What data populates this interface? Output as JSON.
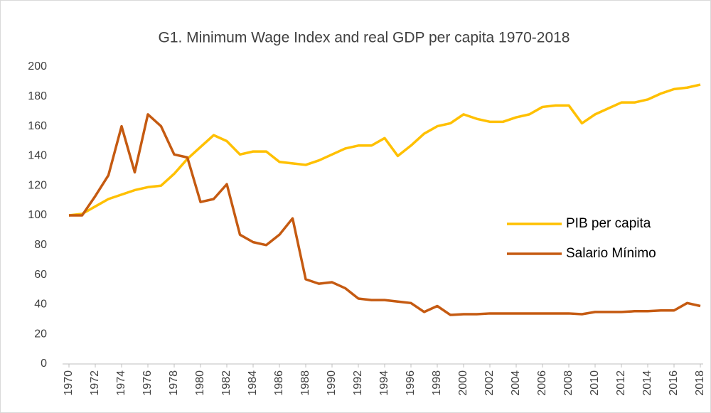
{
  "chart_data": {
    "type": "line",
    "title": "G1. Minimum Wage  Index and real GDP per capita 1970-2018",
    "x": [
      1970,
      1971,
      1972,
      1973,
      1974,
      1975,
      1976,
      1977,
      1978,
      1979,
      1980,
      1981,
      1982,
      1983,
      1984,
      1985,
      1986,
      1987,
      1988,
      1989,
      1990,
      1991,
      1992,
      1993,
      1994,
      1995,
      1996,
      1997,
      1998,
      1999,
      2000,
      2001,
      2002,
      2003,
      2004,
      2005,
      2006,
      2007,
      2008,
      2009,
      2010,
      2011,
      2012,
      2013,
      2014,
      2015,
      2016,
      2017,
      2018
    ],
    "series": [
      {
        "name": "PIB per capita",
        "color": "#ffc000",
        "values": [
          100,
          101,
          106,
          111,
          114,
          117,
          119,
          120,
          128,
          138,
          146,
          154,
          150,
          141,
          143,
          143,
          136,
          135,
          134,
          137,
          141,
          145,
          147,
          147,
          152,
          140,
          147,
          155,
          160,
          162,
          168,
          165,
          163,
          163,
          166,
          168,
          173,
          174,
          174,
          162,
          168,
          172,
          176,
          176,
          178,
          182,
          185,
          186,
          188
        ]
      },
      {
        "name": "Salario Mínimo",
        "color": "#c55a11",
        "values": [
          100,
          100,
          113,
          127,
          160,
          129,
          168,
          160,
          141,
          139,
          109,
          111,
          121,
          87,
          82,
          80,
          87,
          98,
          57,
          54,
          55,
          51,
          44,
          43,
          43,
          42,
          41,
          35,
          39,
          33,
          33.5,
          33.5,
          34,
          34,
          34,
          34,
          34,
          34,
          34,
          33.5,
          35,
          35,
          35,
          35.5,
          35.5,
          36,
          36,
          41,
          39
        ]
      }
    ],
    "xlim": [
      1970,
      2018
    ],
    "xticks": [
      1970,
      1972,
      1974,
      1976,
      1978,
      1980,
      1982,
      1984,
      1986,
      1988,
      1990,
      1992,
      1994,
      1996,
      1998,
      2000,
      2002,
      2004,
      2006,
      2008,
      2010,
      2012,
      2014,
      2016,
      2018
    ],
    "ylim": [
      0,
      200
    ],
    "yticks": [
      0,
      20,
      40,
      60,
      80,
      100,
      120,
      140,
      160,
      180,
      200
    ],
    "grid": false,
    "legend": "right"
  }
}
